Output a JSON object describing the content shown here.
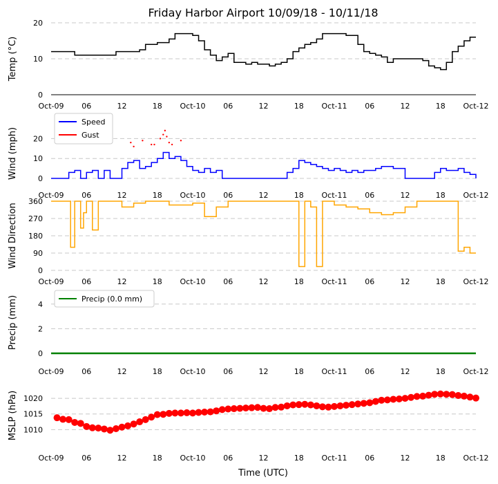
{
  "chart_data": {
    "title": "Friday Harbor Airport 10/09/18 - 10/11/18",
    "xlabel": "Time (UTC)",
    "x_ticks": [
      "Oct-09",
      "06",
      "12",
      "18",
      "Oct-10",
      "06",
      "12",
      "18",
      "Oct-11",
      "06",
      "12",
      "18",
      "Oct-12"
    ],
    "x_range_hours": [
      0,
      72
    ],
    "colors": {
      "temp": "#000000",
      "speed": "#0000ff",
      "gust": "#ff0000",
      "dir": "#ffa500",
      "precip": "#008000",
      "mslp": "#ff0000",
      "grid": "#c8c8c8"
    },
    "panels": [
      {
        "type": "line",
        "ylabel": "Temp ($^\\circ$C)",
        "ylabel_display": "Temp (°C)",
        "ylim": [
          0,
          20
        ],
        "yticks": [
          "0",
          "10",
          "20"
        ],
        "series": [
          {
            "name": "Temp",
            "x": [
              0,
              2,
              4,
              6,
              8,
              10,
              11,
              14,
              15,
              16,
              18,
              20,
              21,
              23,
              24,
              25,
              26,
              27,
              28,
              29,
              30,
              31,
              33,
              34,
              35,
              36,
              37,
              38,
              39,
              40,
              41,
              42,
              43,
              44,
              45,
              46,
              48,
              50,
              52,
              53,
              54,
              55,
              56,
              57,
              58,
              59,
              60,
              61,
              62,
              63,
              64,
              65,
              66,
              67,
              68,
              69,
              70,
              71,
              72
            ],
            "values": [
              12,
              12,
              11,
              11,
              11,
              11,
              12,
              12,
              12.5,
              14,
              14.5,
              15.5,
              17,
              17,
              16.5,
              15,
              12.5,
              11,
              9.5,
              10.5,
              11.5,
              9,
              8.5,
              9,
              8.5,
              8.5,
              8,
              8.5,
              9,
              10,
              12,
              13,
              14,
              14.5,
              15.5,
              17,
              17,
              16.5,
              14,
              12,
              11.5,
              11,
              10.5,
              9,
              10,
              10,
              10,
              10,
              10,
              9.5,
              8,
              7.5,
              7,
              9,
              12,
              13.5,
              15,
              16,
              16
            ]
          }
        ]
      },
      {
        "type": "line",
        "ylabel": "Wind (mph)",
        "ylim": [
          0,
          25
        ],
        "yticks": [
          "0",
          "10",
          "20"
        ],
        "legend": [
          "Speed",
          "Gust"
        ],
        "series": [
          {
            "name": "Speed",
            "x": [
              0,
              2,
              3,
              4,
              5,
              6,
              7,
              8,
              9,
              10,
              11,
              12,
              13,
              14,
              15,
              16,
              17,
              18,
              19,
              20,
              21,
              22,
              23,
              24,
              25,
              26,
              27,
              28,
              29,
              30,
              32,
              34,
              36,
              38,
              40,
              41,
              42,
              43,
              44,
              45,
              46,
              47,
              48,
              49,
              50,
              51,
              52,
              53,
              54,
              55,
              56,
              57,
              58,
              59,
              60,
              61,
              62,
              63,
              64,
              65,
              66,
              67,
              68,
              69,
              70,
              71,
              72
            ],
            "values": [
              0,
              0,
              3,
              4,
              0,
              3,
              4,
              0,
              4,
              0,
              0,
              5,
              8,
              9,
              5,
              6,
              8,
              10,
              13,
              10,
              11,
              9,
              6,
              4,
              3,
              5,
              3,
              4,
              0,
              0,
              0,
              0,
              0,
              0,
              3,
              5,
              9,
              8,
              7,
              6,
              5,
              4,
              5,
              4,
              3,
              4,
              3,
              4,
              4,
              5,
              6,
              6,
              5,
              5,
              0,
              0,
              0,
              0,
              0,
              3,
              5,
              4,
              4,
              5,
              3,
              2,
              0
            ]
          },
          {
            "name": "Gust",
            "x": [
              13.5,
              14,
              15.5,
              17,
              17.5,
              18.5,
              19,
              19.3,
              19.6,
              20,
              20.5,
              22
            ],
            "values": [
              18,
              16,
              19,
              17,
              17,
              20,
              22,
              24,
              21,
              18,
              17,
              19
            ]
          }
        ]
      },
      {
        "type": "line",
        "ylabel": "Wind Direction",
        "ylim": [
          0,
          360
        ],
        "yticks": [
          "0",
          "90",
          "180",
          "270",
          "360"
        ],
        "series": [
          {
            "name": "Direction",
            "x": [
              0,
              3,
              3.3,
              4,
              5,
              5.5,
              6,
              7,
              8,
              9,
              10,
              12,
              14,
              16,
              18,
              20,
              24,
              26,
              28,
              30,
              32,
              34,
              36,
              40,
              42,
              43,
              44,
              45,
              46,
              48,
              50,
              52,
              54,
              56,
              58,
              60,
              62,
              64,
              66,
              68,
              69,
              70,
              71,
              72
            ],
            "values": [
              360,
              360,
              120,
              360,
              220,
              300,
              360,
              210,
              360,
              360,
              360,
              330,
              350,
              360,
              360,
              340,
              350,
              280,
              330,
              360,
              360,
              360,
              360,
              360,
              20,
              360,
              330,
              20,
              360,
              340,
              330,
              320,
              300,
              290,
              300,
              330,
              360,
              360,
              360,
              360,
              100,
              120,
              90,
              90
            ]
          }
        ]
      },
      {
        "type": "line",
        "ylabel": "Precip (mm)",
        "ylim": [
          0,
          5
        ],
        "yticks": [
          "0",
          "2",
          "4"
        ],
        "legend": [
          "Precip (0.0 mm)"
        ],
        "series": [
          {
            "name": "Precip (0.0 mm)",
            "x": [
              0,
              72
            ],
            "values": [
              0,
              0
            ]
          }
        ]
      },
      {
        "type": "scatter",
        "ylabel": "MSLP (hPa)",
        "ylim": [
          1005,
          1024
        ],
        "yticks": [
          "1010",
          "1015",
          "1020"
        ],
        "series": [
          {
            "name": "MSLP",
            "x": [
              1,
              2,
              3,
              4,
              5,
              6,
              7,
              8,
              9,
              10,
              11,
              12,
              13,
              14,
              15,
              16,
              17,
              18,
              19,
              20,
              21,
              22,
              23,
              24,
              25,
              26,
              27,
              28,
              29,
              30,
              31,
              32,
              33,
              34,
              35,
              36,
              37,
              38,
              39,
              40,
              41,
              42,
              43,
              44,
              45,
              46,
              47,
              48,
              49,
              50,
              51,
              52,
              53,
              54,
              55,
              56,
              57,
              58,
              59,
              60,
              61,
              62,
              63,
              64,
              65,
              66,
              67,
              68,
              69,
              70,
              71,
              72
            ],
            "values": [
              1013.8,
              1013.3,
              1013.2,
              1012.3,
              1012.0,
              1011.0,
              1010.6,
              1010.5,
              1010.2,
              1009.8,
              1010.3,
              1010.8,
              1011.2,
              1011.8,
              1012.5,
              1013.2,
              1014.0,
              1014.8,
              1014.9,
              1015.2,
              1015.3,
              1015.3,
              1015.4,
              1015.3,
              1015.5,
              1015.6,
              1015.7,
              1016.0,
              1016.4,
              1016.6,
              1016.7,
              1016.8,
              1016.9,
              1017.0,
              1017.1,
              1016.8,
              1016.7,
              1017.1,
              1017.2,
              1017.6,
              1017.9,
              1018.0,
              1018.1,
              1017.9,
              1017.6,
              1017.3,
              1017.2,
              1017.4,
              1017.6,
              1017.8,
              1018.0,
              1018.2,
              1018.4,
              1018.6,
              1019.0,
              1019.4,
              1019.5,
              1019.7,
              1019.8,
              1020.0,
              1020.3,
              1020.6,
              1020.7,
              1021.0,
              1021.3,
              1021.4,
              1021.3,
              1021.2,
              1020.9,
              1020.7,
              1020.4,
              1020.1
            ]
          }
        ]
      }
    ]
  }
}
